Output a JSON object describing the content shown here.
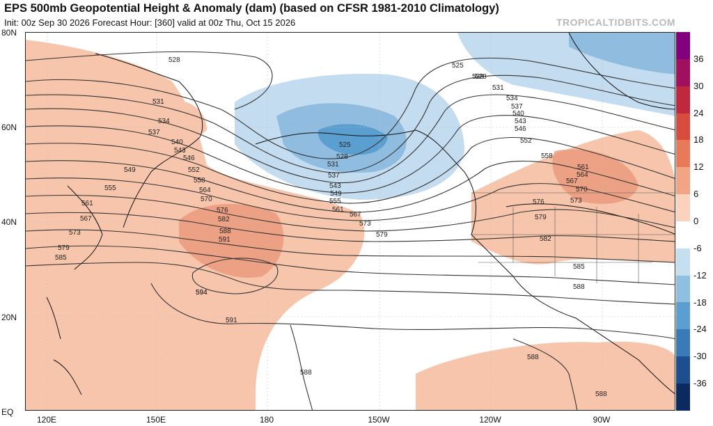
{
  "header": {
    "title": "EPS 500mb Geopotential Height & Anomaly (dam) (based on CFSR 1981-2010 Climatology)",
    "subtitle": "Init: 00z Sep 30 2026   Forecast Hour: [360]   valid at 00z Thu, Oct 15 2026",
    "brand": "TROPICALTIDBITS.COM"
  },
  "map": {
    "lat_labels": [
      "80N",
      "60N",
      "40N",
      "20N",
      "EQ"
    ],
    "lon_labels": [
      "120E",
      "150E",
      "180",
      "150W",
      "120W",
      "90W"
    ],
    "contour_labels": [
      "528",
      "525",
      "528",
      "531",
      "534",
      "537",
      "540",
      "543",
      "546",
      "549",
      "552",
      "555",
      "558",
      "561",
      "564",
      "567",
      "570",
      "573",
      "576",
      "579",
      "582",
      "585",
      "588",
      "591",
      "594",
      "525",
      "528",
      "531",
      "537",
      "543",
      "549",
      "555",
      "561",
      "567",
      "573",
      "579",
      "528",
      "531",
      "534",
      "537",
      "540",
      "543",
      "546",
      "552",
      "558",
      "561",
      "564",
      "567",
      "570",
      "573",
      "576",
      "579",
      "582",
      "585",
      "588",
      "588",
      "588",
      "588",
      "591",
      "594"
    ]
  },
  "colorbar": {
    "ticks": [
      "36",
      "30",
      "24",
      "18",
      "12",
      "6",
      "0",
      "-6",
      "-12",
      "-18",
      "-24",
      "-30",
      "-36"
    ],
    "colors": [
      "#800080",
      "#a0105e",
      "#c0283e",
      "#d84c3e",
      "#e87a5a",
      "#f2a585",
      "#fad2be",
      "#ffffff",
      "#c6dff0",
      "#8fc0e0",
      "#5a9fd0",
      "#3a7ab8",
      "#1d4f8f",
      "#0c2a60"
    ]
  }
}
